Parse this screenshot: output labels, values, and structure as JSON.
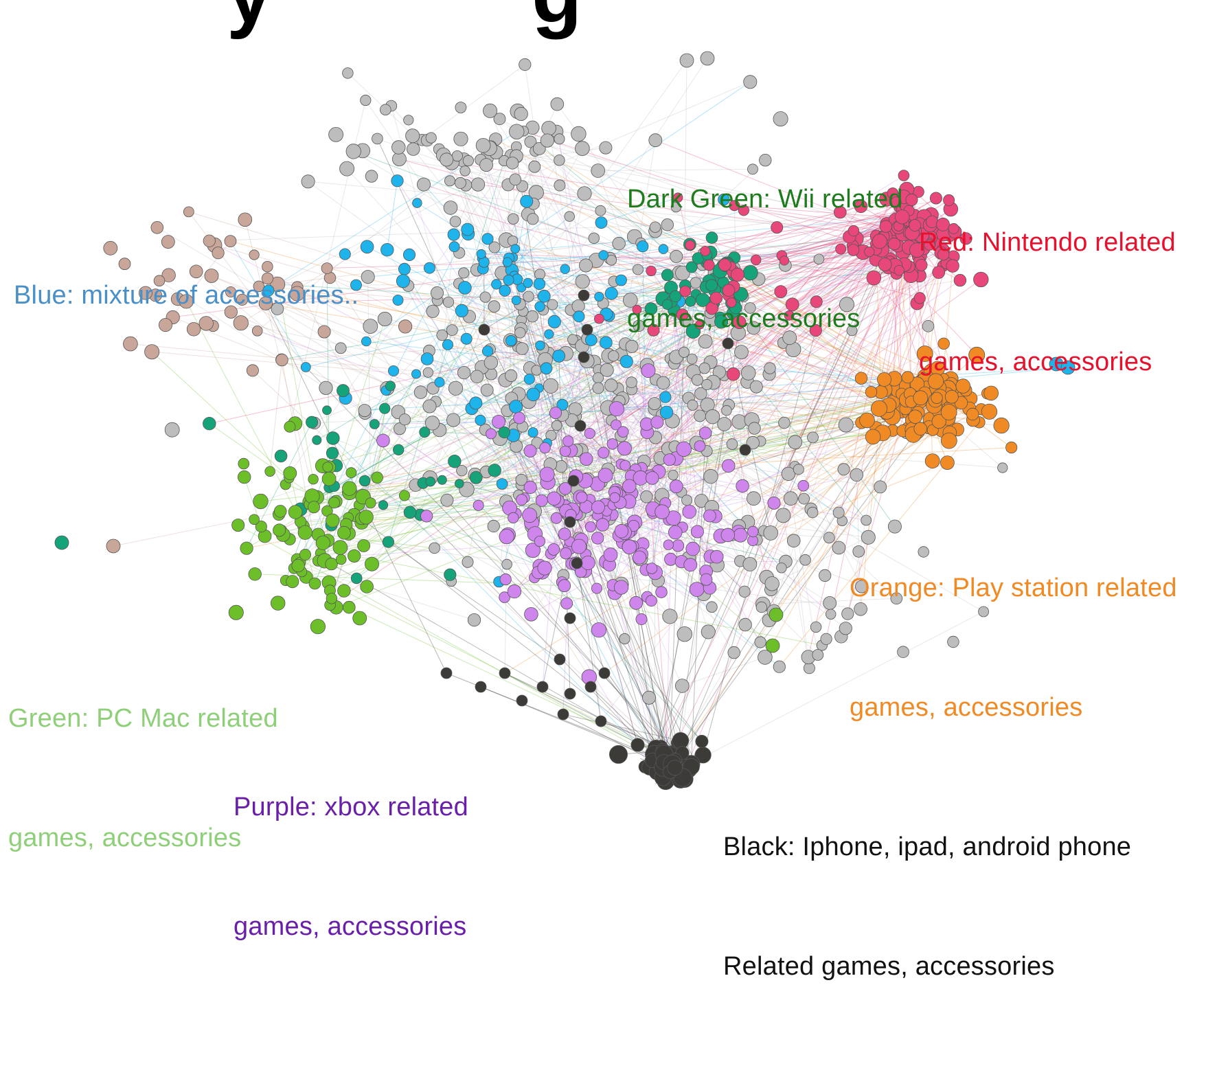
{
  "title_fragment": "y          g",
  "legend": {
    "dark_green": {
      "line1": "Dark Green: Wii related",
      "line2": "games, accessories",
      "color": "#1e7b1e"
    },
    "red": {
      "line1": "Red: Nintendo related",
      "line2": "games, accessories",
      "color": "#e8112d"
    },
    "blue": {
      "line1": "Blue: mixture of accessories..",
      "color": "#4a90c8"
    },
    "orange": {
      "line1": "Orange: Play station related",
      "line2": "games, accessories",
      "color": "#f08a24"
    },
    "green": {
      "line1": "Green: PC Mac related",
      "line2": "games, accessories",
      "color": "#8fcf7a"
    },
    "purple": {
      "line1": "Purple: xbox related",
      "line2": "games, accessories",
      "color": "#6a1fa8"
    },
    "black": {
      "line1": "Black: Iphone, ipad, android phone",
      "line2": "Related games, accessories",
      "color": "#111111"
    }
  },
  "clusters": {
    "gray": {
      "color": "#bdbdbd"
    },
    "brown": {
      "color": "#c9a69a"
    },
    "blue": {
      "color": "#1fb3ec"
    },
    "teal": {
      "color": "#16a37a"
    },
    "red": {
      "color": "#e8477a"
    },
    "orange": {
      "color": "#f08a24"
    },
    "green": {
      "color": "#6dbf2a"
    },
    "purple": {
      "color": "#cf86ec"
    },
    "black": {
      "color": "#3d3b38"
    }
  }
}
